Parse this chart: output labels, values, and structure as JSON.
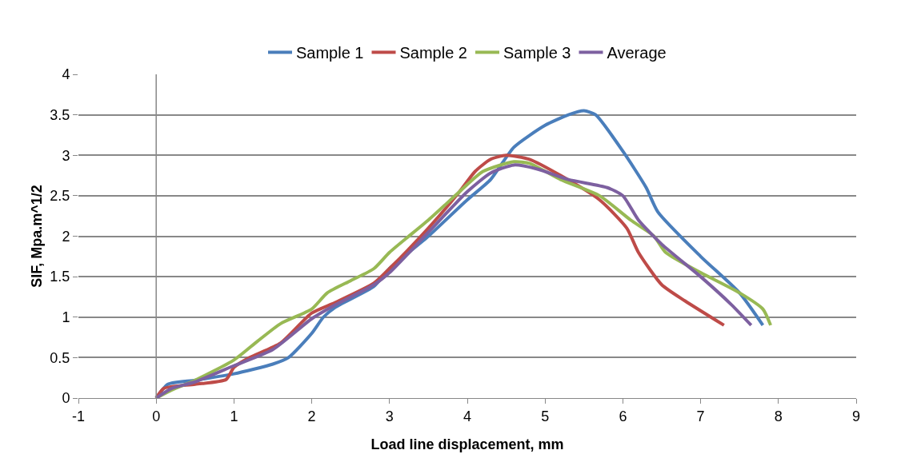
{
  "chart_data": {
    "type": "line",
    "xlabel": "Load line displacement, mm",
    "ylabel": "SIF, Mpa.m^1/2",
    "xlim": [
      -1,
      9
    ],
    "xticks": [
      -1,
      0,
      1,
      2,
      3,
      4,
      5,
      6,
      7,
      8,
      9
    ],
    "ylim": [
      0,
      4
    ],
    "yticks": [
      0,
      0.5,
      1,
      1.5,
      2,
      2.5,
      3,
      3.5,
      4
    ],
    "grid": "y",
    "legend": "top",
    "marker": "none",
    "line_style": "solid",
    "series": [
      {
        "name": "Sample 1",
        "color": "#4a7ebb",
        "x": [
          0,
          0.15,
          0.5,
          1,
          1.5,
          1.7,
          2,
          2.15,
          2.3,
          2.8,
          3,
          3.5,
          4,
          4.3,
          4.6,
          5,
          5.3,
          5.5,
          5.65,
          6,
          6.3,
          6.45,
          7,
          7.5,
          7.8
        ],
        "values": [
          0,
          0.17,
          0.22,
          0.3,
          0.42,
          0.5,
          0.8,
          1.0,
          1.12,
          1.38,
          1.6,
          2.0,
          2.45,
          2.7,
          3.1,
          3.37,
          3.5,
          3.55,
          3.5,
          3.05,
          2.6,
          2.3,
          1.75,
          1.3,
          0.9
        ]
      },
      {
        "name": "Sample 2",
        "color": "#be4b48",
        "x": [
          0,
          0.1,
          0.5,
          0.9,
          1,
          1.2,
          1.6,
          2,
          2.3,
          2.8,
          3,
          3.5,
          3.9,
          4.1,
          4.3,
          4.5,
          4.8,
          5.2,
          5.7,
          6.05,
          6.2,
          6.5,
          6.8,
          7.3
        ],
        "values": [
          0,
          0.12,
          0.17,
          0.23,
          0.38,
          0.5,
          0.68,
          1.05,
          1.18,
          1.42,
          1.6,
          2.1,
          2.55,
          2.8,
          2.95,
          3.0,
          2.95,
          2.75,
          2.45,
          2.1,
          1.8,
          1.4,
          1.2,
          0.9
        ]
      },
      {
        "name": "Sample 3",
        "color": "#98b954",
        "x": [
          0,
          0.2,
          0.5,
          1,
          1.3,
          1.6,
          2,
          2.2,
          2.5,
          2.8,
          3,
          3.5,
          3.9,
          4.2,
          4.6,
          4.8,
          5.2,
          5.7,
          6.1,
          6.4,
          6.55,
          7,
          7.5,
          7.8,
          7.9
        ],
        "values": [
          0,
          0.1,
          0.22,
          0.47,
          0.7,
          0.92,
          1.1,
          1.3,
          1.45,
          1.6,
          1.8,
          2.2,
          2.55,
          2.8,
          2.92,
          2.9,
          2.7,
          2.5,
          2.2,
          2.0,
          1.8,
          1.55,
          1.3,
          1.1,
          0.9
        ]
      },
      {
        "name": "Average",
        "color": "#7d60a0",
        "x": [
          0,
          0.2,
          0.5,
          1,
          1.5,
          2,
          2.3,
          2.8,
          3,
          3.5,
          4,
          4.3,
          4.6,
          4.9,
          5.3,
          5.8,
          6,
          6.2,
          6.5,
          7,
          7.4,
          7.65
        ],
        "values": [
          0,
          0.12,
          0.2,
          0.4,
          0.6,
          0.98,
          1.15,
          1.4,
          1.55,
          2.05,
          2.55,
          2.78,
          2.88,
          2.83,
          2.7,
          2.6,
          2.5,
          2.2,
          1.9,
          1.5,
          1.15,
          0.9
        ]
      }
    ]
  }
}
